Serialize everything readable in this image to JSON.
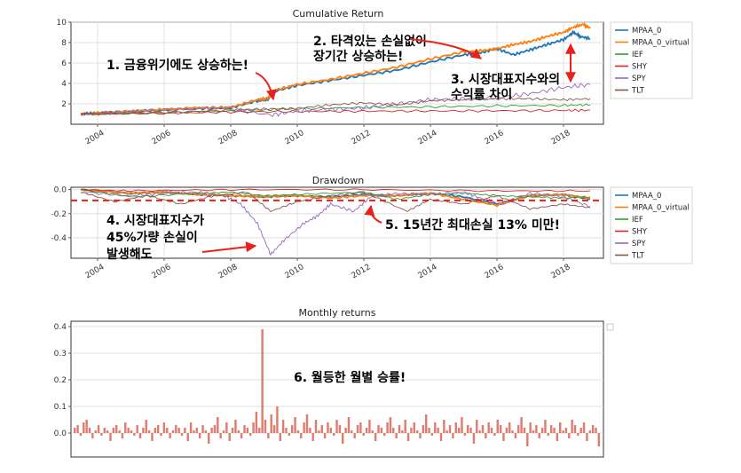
{
  "chart_data": [
    {
      "type": "line",
      "title": "Cumulative Return",
      "xlabel": "",
      "ylabel": "",
      "xlim": [
        2003.2,
        2019.2
      ],
      "ylim": [
        0,
        10
      ],
      "yticks": [
        2,
        4,
        6,
        8,
        10
      ],
      "xticks": [
        "2004",
        "2006",
        "2008",
        "2010",
        "2012",
        "2014",
        "2016",
        "2018"
      ],
      "grid": true,
      "legend": "right",
      "series": [
        {
          "name": "MPAA_0",
          "color": "#1f77b4",
          "x": [
            2003.5,
            2004,
            2005,
            2006,
            2007,
            2008,
            2008.8,
            2009.1,
            2009.3,
            2010,
            2011,
            2012,
            2013,
            2014,
            2015,
            2015.5,
            2016,
            2016.5,
            2017,
            2017.5,
            2018,
            2018.3,
            2018.5,
            2018.8
          ],
          "y": [
            1.0,
            1.1,
            1.25,
            1.4,
            1.55,
            1.6,
            2.3,
            2.4,
            3.2,
            3.8,
            4.3,
            4.8,
            5.3,
            6.1,
            6.8,
            7.0,
            7.4,
            6.8,
            7.3,
            7.8,
            8.3,
            9.0,
            8.6,
            8.4
          ]
        },
        {
          "name": "MPAA_0_virtual",
          "color": "#ff7f0e",
          "x": [
            2003.5,
            2004,
            2005,
            2006,
            2007,
            2008,
            2008.8,
            2009.1,
            2009.3,
            2010,
            2011,
            2012,
            2013,
            2014,
            2015,
            2015.5,
            2016,
            2016.5,
            2017,
            2017.5,
            2018,
            2018.3,
            2018.6,
            2018.8
          ],
          "y": [
            1.0,
            1.1,
            1.28,
            1.45,
            1.6,
            1.65,
            2.4,
            2.5,
            3.3,
            3.9,
            4.4,
            5.0,
            5.6,
            6.4,
            7.1,
            7.2,
            7.4,
            7.8,
            8.1,
            8.6,
            9.0,
            9.5,
            9.8,
            9.4
          ]
        },
        {
          "name": "IEF",
          "color": "#2ca02c",
          "x": [
            2003.5,
            2006,
            2008,
            2009,
            2010,
            2012,
            2014,
            2016,
            2018,
            2018.8
          ],
          "y": [
            1.0,
            1.1,
            1.3,
            1.4,
            1.5,
            1.65,
            1.7,
            1.8,
            1.85,
            1.9
          ]
        },
        {
          "name": "SHY",
          "color": "#d62728",
          "x": [
            2003.5,
            2006,
            2008,
            2010,
            2012,
            2014,
            2016,
            2018,
            2018.8
          ],
          "y": [
            1.0,
            1.08,
            1.2,
            1.25,
            1.28,
            1.3,
            1.32,
            1.35,
            1.37
          ]
        },
        {
          "name": "SPY",
          "color": "#9467bd",
          "x": [
            2003.5,
            2005,
            2007,
            2007.8,
            2009.2,
            2010,
            2011,
            2012,
            2013,
            2014,
            2015,
            2016,
            2017,
            2018,
            2018.8
          ],
          "y": [
            1.0,
            1.2,
            1.5,
            1.6,
            0.9,
            1.3,
            1.45,
            1.6,
            2.0,
            2.4,
            2.5,
            2.6,
            3.0,
            3.6,
            3.9
          ]
        },
        {
          "name": "TLT",
          "color": "#8c564b",
          "x": [
            2003.5,
            2006,
            2008,
            2009,
            2010,
            2011,
            2012,
            2013,
            2014,
            2015,
            2016,
            2017,
            2018,
            2018.8
          ],
          "y": [
            1.0,
            1.15,
            1.4,
            1.5,
            1.55,
            1.9,
            2.1,
            1.9,
            2.3,
            2.4,
            2.5,
            2.5,
            2.4,
            2.5
          ]
        }
      ]
    },
    {
      "type": "line",
      "title": "Drawdown",
      "xlim": [
        2003.2,
        2019.2
      ],
      "ylim": [
        -0.57,
        0.02
      ],
      "yticks": [
        0.0,
        -0.2,
        -0.4
      ],
      "ytick_labels": [
        "0.0",
        "-0.2",
        "-0.4"
      ],
      "xticks": [
        "2004",
        "2006",
        "2008",
        "2010",
        "2012",
        "2014",
        "2016",
        "2018"
      ],
      "grid": true,
      "legend": "right",
      "reference_line": {
        "y": -0.09,
        "color": "#e8211b",
        "style": "dashed"
      },
      "series": [
        {
          "name": "MPAA_0",
          "color": "#1f77b4",
          "x": [
            2003.5,
            2005,
            2006,
            2007,
            2008,
            2009,
            2010,
            2011,
            2012,
            2013,
            2014,
            2015,
            2016,
            2017,
            2018,
            2018.8
          ],
          "y": [
            0,
            -0.03,
            -0.02,
            -0.04,
            -0.05,
            -0.06,
            -0.05,
            -0.06,
            -0.04,
            -0.05,
            -0.03,
            -0.06,
            -0.12,
            -0.05,
            -0.04,
            -0.08
          ]
        },
        {
          "name": "MPAA_0_virtual",
          "color": "#ff7f0e",
          "x": [
            2003.5,
            2005,
            2006,
            2007,
            2008,
            2009,
            2010,
            2011,
            2012,
            2013,
            2014,
            2015,
            2016,
            2017,
            2018,
            2018.8
          ],
          "y": [
            0,
            -0.03,
            -0.02,
            -0.04,
            -0.05,
            -0.06,
            -0.05,
            -0.07,
            -0.05,
            -0.05,
            -0.03,
            -0.08,
            -0.13,
            -0.05,
            -0.04,
            -0.07
          ]
        },
        {
          "name": "IEF",
          "color": "#2ca02c",
          "x": [
            2003.5,
            2005,
            2007,
            2008,
            2009,
            2010,
            2012,
            2013,
            2014,
            2015,
            2016,
            2017,
            2018,
            2018.8
          ],
          "y": [
            0,
            -0.06,
            -0.03,
            -0.02,
            -0.05,
            -0.04,
            -0.02,
            -0.08,
            -0.04,
            -0.03,
            -0.05,
            -0.06,
            -0.07,
            -0.06
          ]
        },
        {
          "name": "SHY",
          "color": "#d62728",
          "x": [
            2003.5,
            2005,
            2008,
            2012,
            2016,
            2018.8
          ],
          "y": [
            0,
            -0.01,
            0,
            0,
            -0.01,
            -0.01
          ]
        },
        {
          "name": "SPY",
          "color": "#9467bd",
          "x": [
            2003.5,
            2005,
            2006,
            2007,
            2007.8,
            2008.3,
            2008.8,
            2009.2,
            2009.6,
            2010.2,
            2010.6,
            2011,
            2011.7,
            2012.2,
            2013,
            2014,
            2015,
            2015.6,
            2016.1,
            2017,
            2018,
            2018.8
          ],
          "y": [
            -0.02,
            -0.05,
            -0.03,
            -0.02,
            -0.05,
            -0.12,
            -0.28,
            -0.54,
            -0.42,
            -0.28,
            -0.22,
            -0.12,
            -0.18,
            -0.06,
            -0.03,
            -0.04,
            -0.02,
            -0.08,
            -0.12,
            -0.03,
            -0.06,
            -0.14
          ]
        },
        {
          "name": "TLT",
          "color": "#8c564b",
          "x": [
            2003.5,
            2004.5,
            2005.5,
            2006.5,
            2007.5,
            2008.5,
            2009.2,
            2010,
            2011,
            2012,
            2013.3,
            2014,
            2015,
            2016,
            2017,
            2018,
            2018.8
          ],
          "y": [
            -0.02,
            -0.1,
            -0.05,
            -0.12,
            -0.05,
            -0.02,
            -0.18,
            -0.1,
            -0.05,
            -0.02,
            -0.18,
            -0.08,
            -0.12,
            -0.05,
            -0.16,
            -0.12,
            -0.15
          ]
        }
      ]
    },
    {
      "type": "bar",
      "title": "Monthly returns",
      "ylim": [
        -0.09,
        0.42
      ],
      "yticks": [
        0.0,
        0.1,
        0.2,
        0.3,
        0.4
      ],
      "ytick_labels": [
        "0.0",
        "0.1",
        "0.2",
        "0.3",
        "0.4"
      ],
      "color": "#e07b6e",
      "values": [
        0.02,
        0.03,
        -0.01,
        0.04,
        0.05,
        0.02,
        -0.02,
        0.01,
        0.03,
        -0.01,
        0.02,
        0.01,
        -0.03,
        0.02,
        0.03,
        0.01,
        -0.02,
        0.04,
        0.02,
        0.01,
        -0.01,
        0.03,
        -0.02,
        0.02,
        0.05,
        0.01,
        -0.03,
        0.02,
        0.03,
        -0.01,
        0.04,
        0.02,
        -0.02,
        0.01,
        0.03,
        0.02,
        -0.01,
        0.02,
        -0.03,
        0.04,
        0.01,
        0.02,
        -0.02,
        0.03,
        0.01,
        -0.04,
        0.02,
        0.03,
        0.06,
        -0.02,
        0.01,
        0.04,
        -0.03,
        0.02,
        0.05,
        0.01,
        -0.02,
        0.03,
        0.02,
        -0.01,
        0.04,
        0.08,
        0.02,
        0.39,
        0.05,
        -0.02,
        0.07,
        0.03,
        0.1,
        -0.03,
        0.05,
        0.02,
        -0.01,
        0.03,
        0.06,
        0.01,
        -0.02,
        0.04,
        0.07,
        0.02,
        -0.03,
        0.05,
        0.01,
        0.03,
        -0.02,
        0.04,
        0.02,
        -0.01,
        0.05,
        0.03,
        -0.04,
        0.02,
        0.06,
        0.01,
        -0.02,
        0.03,
        0.04,
        -0.01,
        0.02,
        0.05,
        0.01,
        -0.03,
        0.03,
        0.02,
        -0.01,
        0.04,
        0.06,
        0.02,
        -0.02,
        0.03,
        0.01,
        0.05,
        -0.03,
        0.02,
        0.04,
        0.01,
        -0.02,
        0.03,
        0.07,
        0.02,
        -0.01,
        0.04,
        0.02,
        -0.03,
        0.05,
        0.01,
        0.03,
        -0.02,
        0.04,
        0.02,
        0.06,
        -0.01,
        0.03,
        0.02,
        -0.04,
        0.05,
        0.01,
        0.03,
        -0.02,
        0.04,
        0.02,
        -0.01,
        0.05,
        0.03,
        -0.03,
        0.02,
        0.04,
        0.01,
        -0.02,
        0.03,
        0.06,
        0.02,
        -0.05,
        0.04,
        0.01,
        0.03,
        -0.02,
        0.02,
        0.05,
        -0.01,
        0.03,
        0.02,
        -0.03,
        0.04,
        0.01,
        0.02,
        -0.02,
        0.05,
        0.03,
        -0.01,
        0.02,
        0.04,
        -0.03,
        0.01,
        0.03,
        0.02,
        -0.05
      ]
    }
  ],
  "annotations": [
    {
      "id": "a1",
      "text": "1. 금융위기에도 상승하는!"
    },
    {
      "id": "a2",
      "lines": [
        "2. 타격있는 손실없이",
        "장기간 상승하는!"
      ]
    },
    {
      "id": "a3",
      "lines": [
        "3. 시장대표지수와의",
        "수익률 차이"
      ]
    },
    {
      "id": "a4",
      "lines": [
        "4. 시장대표지수가",
        "45%가량 손실이",
        "발생해도"
      ]
    },
    {
      "id": "a5",
      "text": "5. 15년간 최대손실 13% 미만!"
    },
    {
      "id": "a6",
      "text": "6. 월등한 월별 승률!"
    }
  ],
  "annotation_color": "#e8211b"
}
